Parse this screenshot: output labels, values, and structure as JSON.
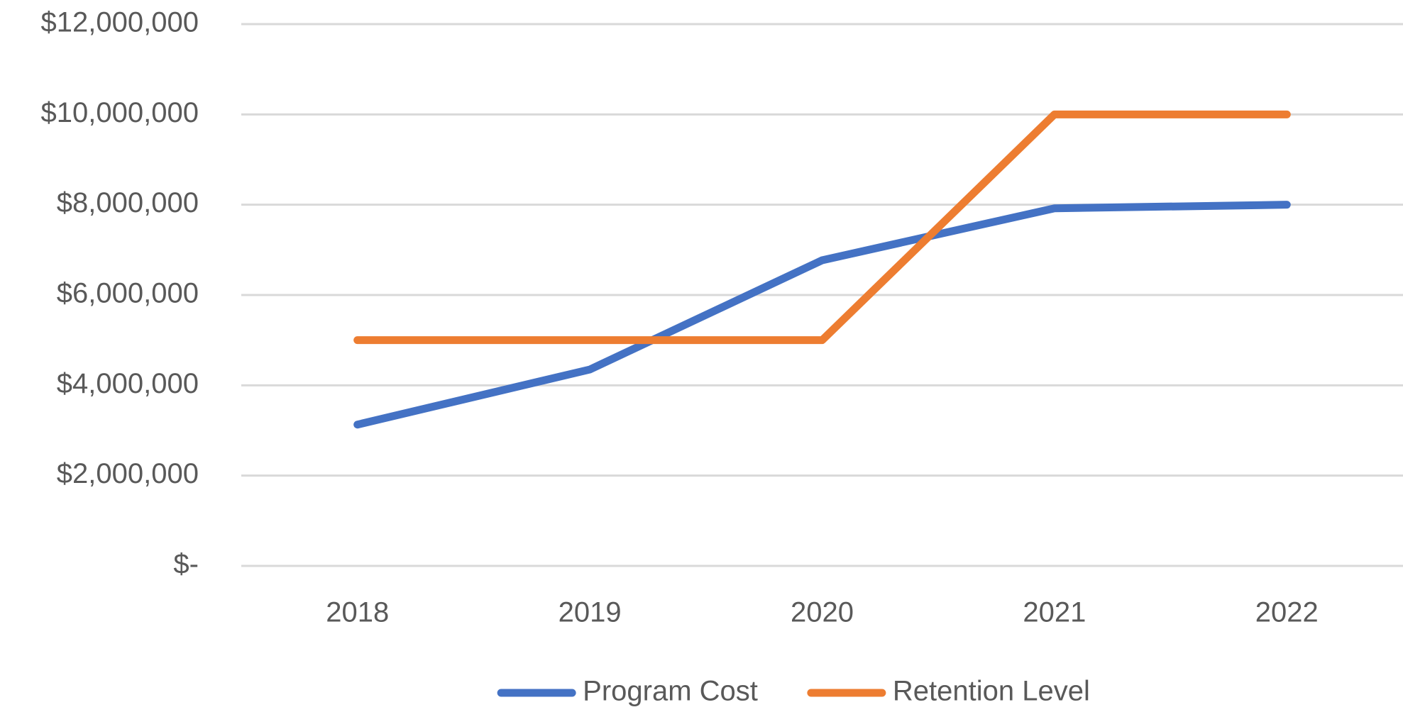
{
  "chart_data": {
    "type": "line",
    "categories": [
      "2018",
      "2019",
      "2020",
      "2021",
      "2022"
    ],
    "series": [
      {
        "name": "Program Cost",
        "color": "#4472c4",
        "values": [
          3130000,
          4350000,
          6770000,
          7920000,
          8000000
        ]
      },
      {
        "name": "Retention Level",
        "color": "#ed7d31",
        "values": [
          5000000,
          5000000,
          5000000,
          10000000,
          10000000
        ]
      }
    ],
    "ylim": [
      0,
      12000000
    ],
    "yticks": [
      {
        "value": 0,
        "label": "$-"
      },
      {
        "value": 2000000,
        "label": "$2,000,000"
      },
      {
        "value": 4000000,
        "label": "$4,000,000"
      },
      {
        "value": 6000000,
        "label": "$6,000,000"
      },
      {
        "value": 8000000,
        "label": "$8,000,000"
      },
      {
        "value": 10000000,
        "label": "$10,000,000"
      },
      {
        "value": 12000000,
        "label": "$12,000,000"
      }
    ],
    "grid": true,
    "legend": "bottom"
  }
}
